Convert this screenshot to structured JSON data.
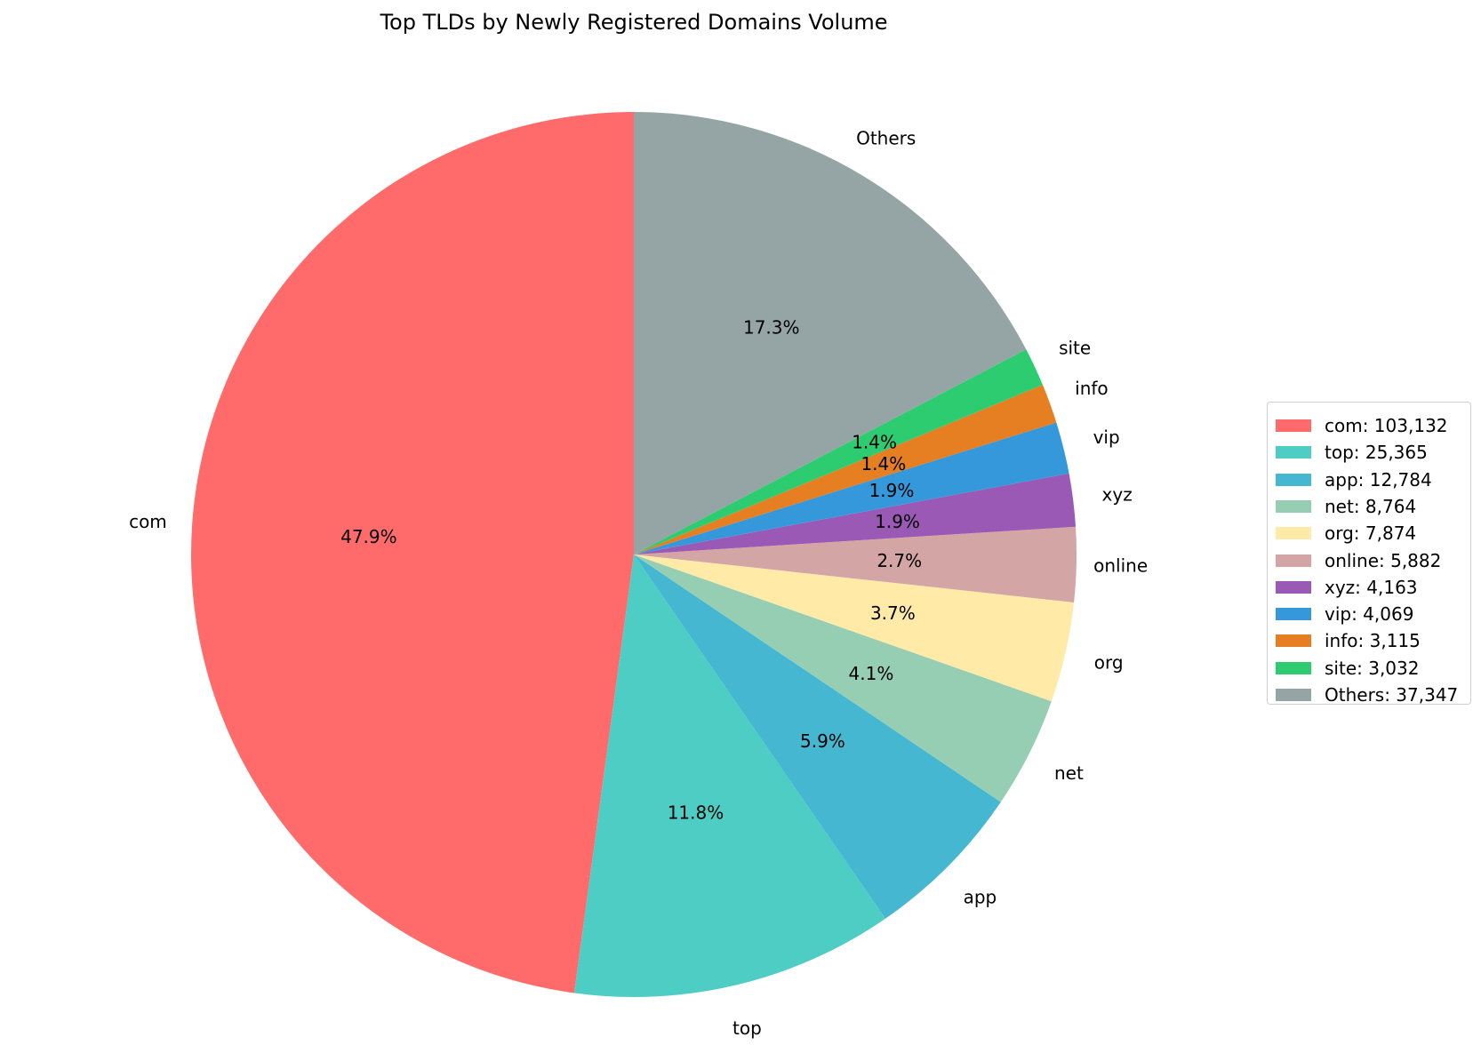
{
  "chart_data": {
    "type": "pie",
    "title": "Top TLDs by Newly Registered Domains Volume",
    "slices": [
      {
        "label": "com",
        "value": 103132,
        "pct_label": "47.9%",
        "legend": "com: 103,132",
        "color": "#FF6B6B"
      },
      {
        "label": "top",
        "value": 25365,
        "pct_label": "11.8%",
        "legend": "top: 25,365",
        "color": "#4ECDC4"
      },
      {
        "label": "app",
        "value": 12784,
        "pct_label": "5.9%",
        "legend": "app: 12,784",
        "color": "#45B7D1"
      },
      {
        "label": "net",
        "value": 8764,
        "pct_label": "4.1%",
        "legend": "net: 8,764",
        "color": "#96CEB4"
      },
      {
        "label": "org",
        "value": 7874,
        "pct_label": "3.7%",
        "legend": "org: 7,874",
        "color": "#FFEAA7"
      },
      {
        "label": "online",
        "value": 5882,
        "pct_label": "2.7%",
        "legend": "online: 5,882",
        "color": "#D4A5A5"
      },
      {
        "label": "xyz",
        "value": 4163,
        "pct_label": "1.9%",
        "legend": "xyz: 4,163",
        "color": "#9B59B6"
      },
      {
        "label": "vip",
        "value": 4069,
        "pct_label": "1.9%",
        "legend": "vip: 4,069",
        "color": "#3498DB"
      },
      {
        "label": "info",
        "value": 3115,
        "pct_label": "1.4%",
        "legend": "info: 3,115",
        "color": "#E67E22"
      },
      {
        "label": "site",
        "value": 3032,
        "pct_label": "1.4%",
        "legend": "site: 3,032",
        "color": "#2ECC71"
      },
      {
        "label": "Others",
        "value": 37347,
        "pct_label": "17.3%",
        "legend": "Others: 37,347",
        "color": "#95A5A6"
      }
    ],
    "start_angle_deg": 90,
    "direction": "counterclockwise",
    "legend_position": "center-right"
  }
}
